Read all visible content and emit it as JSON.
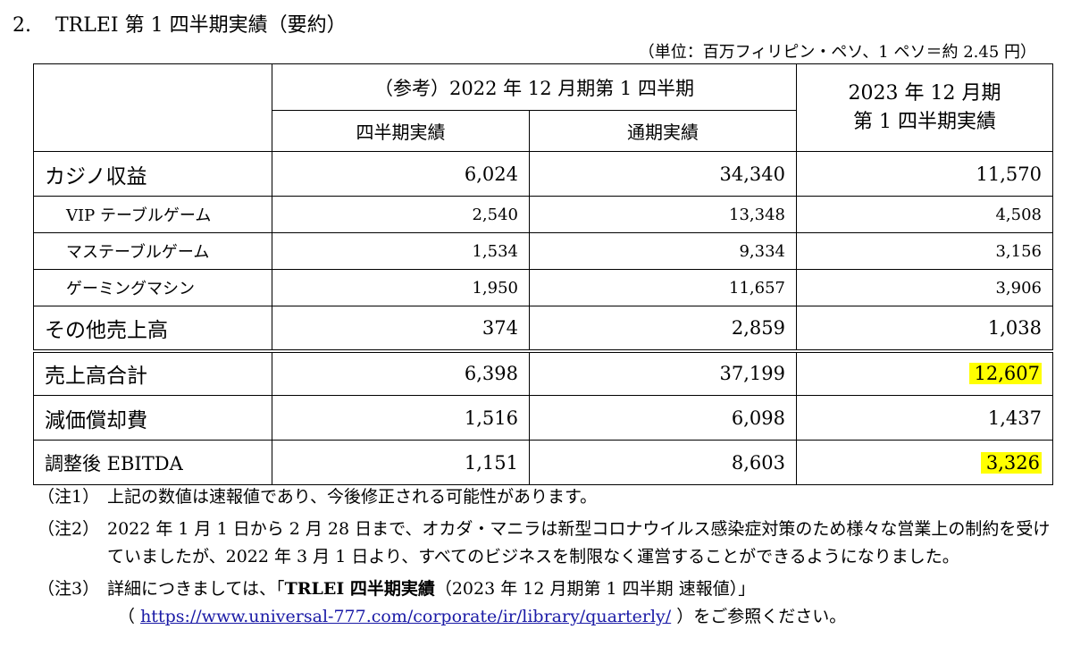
{
  "heading": {
    "number": "2.",
    "title": "TRLEI 第 1 四半期実績（要約）"
  },
  "unit_note": "（単位：百万フィリピン・ペソ、1 ペソ＝約 2.45 円）",
  "table": {
    "header_2022": "（参考）2022 年 12 月期第 1 四半期",
    "header_quarter": "四半期実績",
    "header_fullyear": "通期実績",
    "header_2023_line1": "2023 年 12 月期",
    "header_2023_line2": "第 1 四半期実績",
    "rows": [
      {
        "label": "カジノ収益",
        "q2022": "6,024",
        "fy2022": "34,340",
        "q2023": "11,570"
      },
      {
        "label": "VIP テーブルゲーム",
        "q2022": "2,540",
        "fy2022": "13,348",
        "q2023": "4,508"
      },
      {
        "label": "マステーブルゲーム",
        "q2022": "1,534",
        "fy2022": "9,334",
        "q2023": "3,156"
      },
      {
        "label": "ゲーミングマシン",
        "q2022": "1,950",
        "fy2022": "11,657",
        "q2023": "3,906"
      },
      {
        "label": "その他売上高",
        "q2022": "374",
        "fy2022": "2,859",
        "q2023": "1,038"
      },
      {
        "label": "売上高合計",
        "q2022": "6,398",
        "fy2022": "37,199",
        "q2023": "12,607"
      },
      {
        "label": "減価償却費",
        "q2022": "1,516",
        "fy2022": "6,098",
        "q2023": "1,437"
      },
      {
        "label": "調整後 EBITDA",
        "q2022": "1,151",
        "fy2022": "8,603",
        "q2023": "3,326"
      }
    ],
    "highlight_color": "#ffff00"
  },
  "notes": [
    {
      "tag": "（注1）",
      "text": "上記の数値は速報値であり、今後修正される可能性があります。"
    },
    {
      "tag": "（注2）",
      "text": "2022 年 1 月 1 日から 2 月 28 日まで、オカダ・マニラは新型コロナウイルス感染症対策のため様々な営業上の制約を受けていましたが、2022 年 3 月 1 日より、すべてのビジネスを制限なく運営することができるようになりました。"
    },
    {
      "tag": "（注3）",
      "text_before": "詳細につきましては、「",
      "text_bold": "TRLEI 四半期実績",
      "text_after": "（2023 年 12 月期第 1 四半期  速報値）」",
      "link_open": "（",
      "link_text": "https://www.universal-777.com/corporate/ir/library/quarterly/",
      "link_close": "）をご参照ください。"
    }
  ]
}
